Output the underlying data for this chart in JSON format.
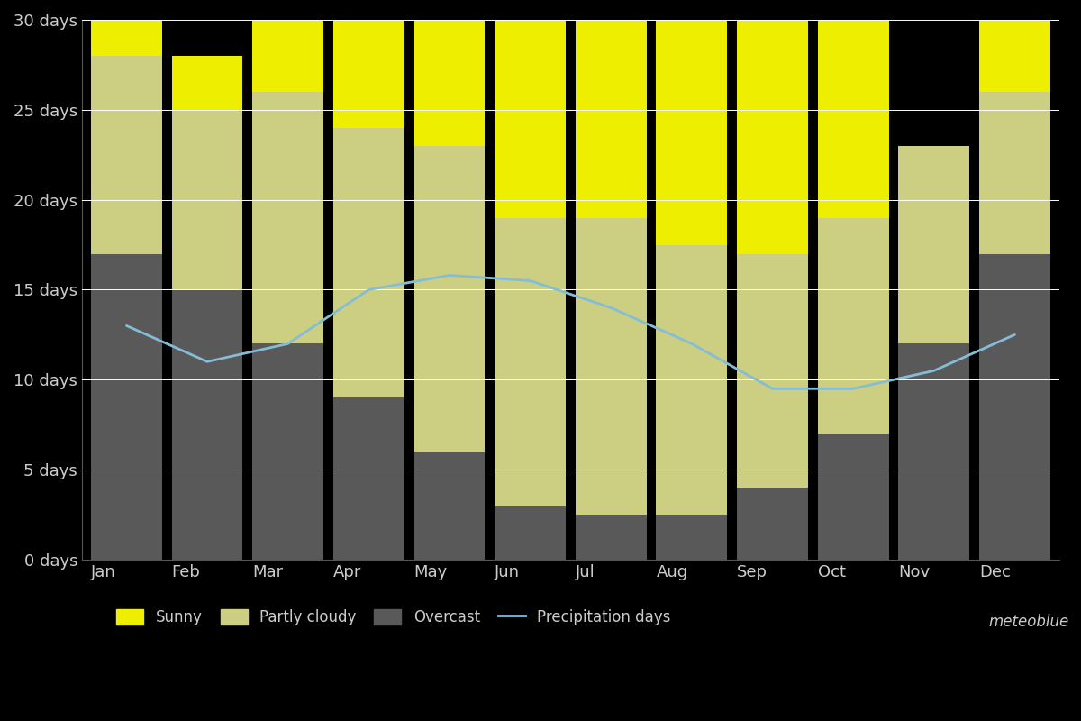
{
  "months": [
    "Jan",
    "Feb",
    "Mar",
    "Apr",
    "May",
    "Jun",
    "Jul",
    "Aug",
    "Sep",
    "Oct",
    "Nov",
    "Dec"
  ],
  "overcast": [
    17,
    15,
    12,
    9,
    6,
    3,
    2.5,
    2.5,
    4,
    7,
    12,
    17
  ],
  "partly_cloudy": [
    11,
    10,
    14,
    15,
    17,
    16,
    16.5,
    15,
    13,
    12,
    11,
    9
  ],
  "sunny": [
    2,
    3,
    5,
    7,
    7,
    11,
    11,
    12.5,
    13,
    11,
    0,
    4
  ],
  "precipitation": [
    13,
    11,
    12,
    15,
    15.8,
    15.5,
    14,
    12,
    9.5,
    9.5,
    10.5,
    12.5
  ],
  "colors": {
    "sunny": "#eeee00",
    "partly_cloudy": "#cccf82",
    "overcast": "#595959",
    "precipitation": "#85bcd6",
    "background": "#000000",
    "text": "#cccccc",
    "grid": "#555555",
    "bar_separator": "#000000"
  },
  "ylim": [
    0,
    30
  ],
  "yticks": [
    0,
    5,
    10,
    15,
    20,
    25,
    30
  ],
  "ytick_labels": [
    "0 days",
    "5 days",
    "10 days",
    "15 days",
    "20 days",
    "25 days",
    "30 days"
  ],
  "figsize": [
    12,
    8
  ],
  "watermark": "meteoblue"
}
